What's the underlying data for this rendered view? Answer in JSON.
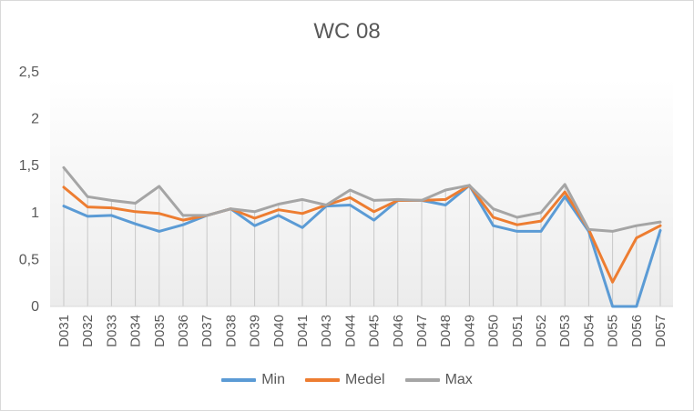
{
  "chart_data": {
    "type": "line",
    "title": "WC 08",
    "xlabel": "",
    "ylabel": "",
    "ylim": [
      0,
      2.5
    ],
    "ytick_labels": [
      "0",
      "0,5",
      "1",
      "1,5",
      "2",
      "2,5"
    ],
    "grid": false,
    "legend_position": "bottom",
    "categories": [
      "D031",
      "D032",
      "D033",
      "D034",
      "D035",
      "D036",
      "D037",
      "D038",
      "D039",
      "D040",
      "D041",
      "D043",
      "D044",
      "D045",
      "D046",
      "D047",
      "D048",
      "D049",
      "D050",
      "D051",
      "D052",
      "D053",
      "D054",
      "D055",
      "D056",
      "D057"
    ],
    "series": [
      {
        "name": "Min",
        "color": "#5b9bd5",
        "values": [
          1.07,
          0.96,
          0.97,
          0.88,
          0.8,
          0.87,
          0.97,
          1.04,
          0.86,
          0.97,
          0.84,
          1.07,
          1.08,
          0.92,
          1.13,
          1.13,
          1.08,
          1.29,
          0.86,
          0.8,
          0.8,
          1.17,
          0.8,
          0.0,
          0.0,
          0.81
        ]
      },
      {
        "name": "Medel",
        "color": "#ed7d31",
        "values": [
          1.27,
          1.06,
          1.05,
          1.01,
          0.99,
          0.92,
          0.97,
          1.04,
          0.94,
          1.03,
          0.99,
          1.08,
          1.16,
          1.01,
          1.13,
          1.13,
          1.14,
          1.29,
          0.95,
          0.87,
          0.91,
          1.22,
          0.82,
          0.26,
          0.73,
          0.86
        ]
      },
      {
        "name": "Max",
        "color": "#a5a5a5",
        "values": [
          1.48,
          1.17,
          1.13,
          1.1,
          1.28,
          0.97,
          0.97,
          1.04,
          1.01,
          1.09,
          1.14,
          1.08,
          1.24,
          1.13,
          1.14,
          1.13,
          1.24,
          1.29,
          1.04,
          0.95,
          1.0,
          1.3,
          0.82,
          0.8,
          0.86,
          0.9
        ]
      }
    ]
  }
}
